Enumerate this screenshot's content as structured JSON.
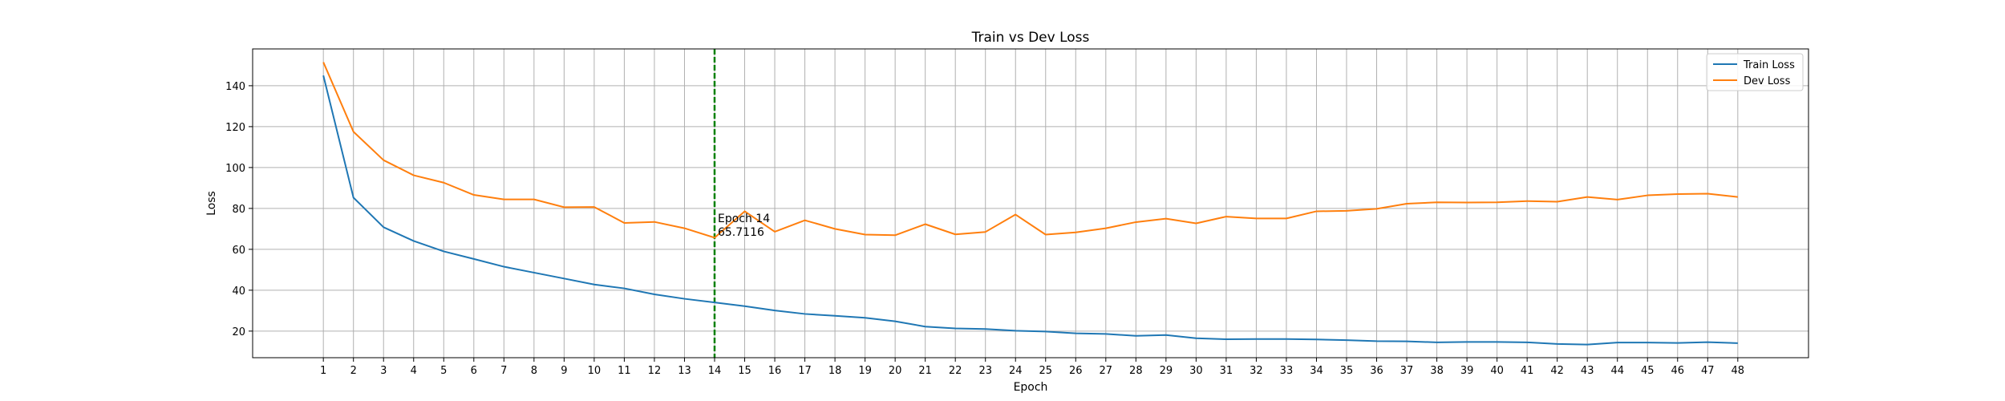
{
  "chart_data": {
    "type": "line",
    "title": "Train vs Dev Loss",
    "xlabel": "Epoch",
    "ylabel": "Loss",
    "x": [
      1,
      2,
      3,
      4,
      5,
      6,
      7,
      8,
      9,
      10,
      11,
      12,
      13,
      14,
      15,
      16,
      17,
      18,
      19,
      20,
      21,
      22,
      23,
      24,
      25,
      26,
      27,
      28,
      29,
      30,
      31,
      32,
      33,
      34,
      35,
      36,
      37,
      38,
      39,
      40,
      41,
      42,
      43,
      44,
      45,
      46,
      47,
      48
    ],
    "xlim": [
      -1.35,
      50.35
    ],
    "ylim": [
      7,
      158
    ],
    "yticks": [
      20,
      40,
      60,
      80,
      100,
      120,
      140
    ],
    "grid": true,
    "legend_position": "top-right",
    "series": [
      {
        "name": "Train Loss",
        "color": "#1f77b4",
        "values": [
          145.0,
          85.3,
          70.8,
          64.1,
          59.0,
          55.3,
          51.5,
          48.6,
          45.7,
          42.8,
          40.9,
          38.0,
          35.8,
          34.0,
          32.2,
          30.1,
          28.4,
          27.5,
          26.5,
          24.8,
          22.2,
          21.3,
          21.0,
          20.2,
          19.8,
          18.9,
          18.6,
          17.7,
          18.1,
          16.5,
          16.0,
          16.1,
          16.1,
          15.9,
          15.6,
          15.1,
          15.0,
          14.5,
          14.7,
          14.7,
          14.5,
          13.7,
          13.4,
          14.4,
          14.4,
          14.2,
          14.6,
          14.1
        ]
      },
      {
        "name": "Dev Loss",
        "color": "#ff7f0e",
        "values": [
          151.5,
          117.5,
          103.6,
          96.2,
          92.6,
          86.6,
          84.4,
          84.4,
          80.6,
          80.7,
          72.9,
          73.4,
          70.3,
          65.7,
          78.6,
          68.6,
          74.2,
          70.0,
          67.2,
          66.9,
          72.3,
          67.3,
          68.5,
          77.0,
          67.2,
          68.3,
          70.3,
          73.3,
          75.0,
          72.7,
          76.0,
          75.1,
          75.1,
          78.6,
          78.8,
          79.8,
          82.3,
          83.0,
          82.9,
          83.0,
          83.6,
          83.3,
          85.6,
          84.3,
          86.4,
          87.0,
          87.2,
          85.6
        ]
      }
    ],
    "annotation": {
      "epoch": 14,
      "line_color": "#008000",
      "line_style": "dashed",
      "text_line1": "Epoch 14",
      "text_line2": "65.7116"
    }
  }
}
